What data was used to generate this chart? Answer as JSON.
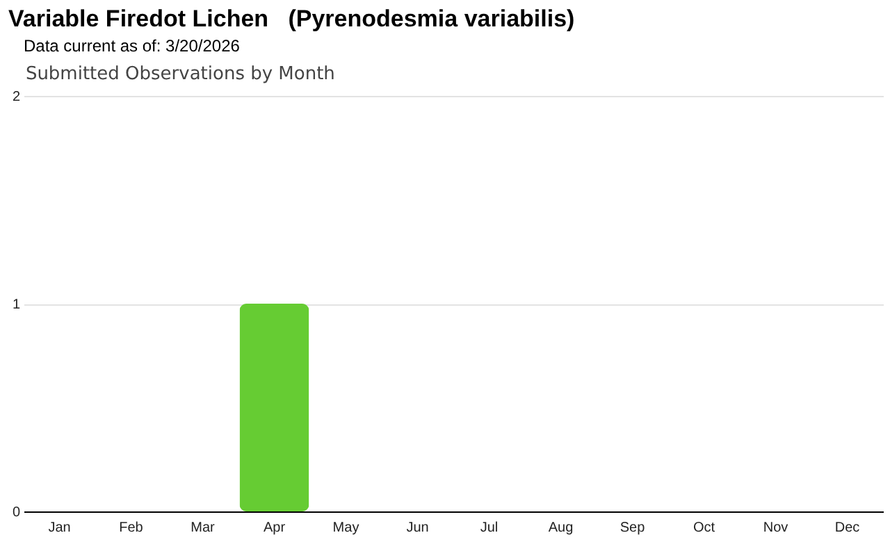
{
  "chart_data": {
    "type": "bar",
    "title": "Variable Firedot Lichen   (Pyrenodesmia variabilis)",
    "subtitle": "Data current as of: 3/20/2026",
    "annotations": [
      "Submitted Observations by Month"
    ],
    "categories": [
      "Jan",
      "Feb",
      "Mar",
      "Apr",
      "May",
      "Jun",
      "Jul",
      "Aug",
      "Sep",
      "Oct",
      "Nov",
      "Dec"
    ],
    "values": [
      0,
      0,
      0,
      1,
      0,
      0,
      0,
      0,
      0,
      0,
      0,
      0
    ],
    "color": "#66cc33",
    "ylim": [
      0,
      2
    ],
    "yticks": [
      0,
      1,
      2
    ],
    "grid": "y"
  }
}
